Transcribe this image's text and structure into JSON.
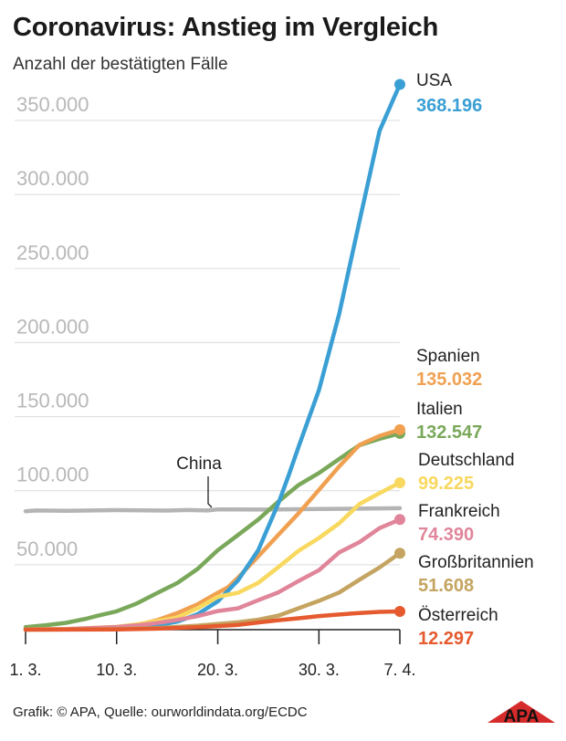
{
  "title": "Coronavirus: Anstieg im Vergleich",
  "subtitle": "Anzahl der bestätigten Fälle",
  "footer": "Grafik: © APA, Quelle: ourworldindata.org/ECDC",
  "logo_text": "APA",
  "chart_data": {
    "type": "line",
    "title": "Coronavirus: Anstieg im Vergleich",
    "subtitle": "Anzahl der bestätigten Fälle",
    "ylim": [
      0,
      370000
    ],
    "y_ticks": [
      50000,
      100000,
      150000,
      200000,
      250000,
      300000,
      350000
    ],
    "y_tick_labels": [
      "50.000",
      "100.000",
      "150.000",
      "200.000",
      "250.000",
      "300.000",
      "350.000"
    ],
    "x_tick_labels": [
      "1. 3.",
      "10. 3.",
      "20. 3.",
      "30. 3.",
      "7. 4."
    ],
    "x_tick_days": [
      1,
      10,
      20,
      30,
      38
    ],
    "xlim": [
      1,
      38
    ],
    "grid": true,
    "series": [
      {
        "name": "China",
        "color": "#b4b4b4",
        "label": "China",
        "end_marker": false,
        "x": [
          1,
          2,
          5,
          10,
          15,
          17,
          19,
          20,
          25,
          30,
          35,
          38
        ],
        "y": [
          80000,
          80500,
          80300,
          80700,
          80400,
          80800,
          80500,
          81200,
          81100,
          81500,
          81800,
          82000
        ]
      },
      {
        "name": "Italien",
        "color": "#7aa85a",
        "label": "Italien",
        "value_label": "132.547",
        "end_marker": true,
        "x": [
          1,
          3,
          5,
          7,
          8,
          10,
          12,
          14,
          16,
          18,
          20,
          22,
          24,
          26,
          28,
          30,
          32,
          34,
          36,
          38
        ],
        "y": [
          1700,
          3000,
          4600,
          7400,
          9200,
          12400,
          17700,
          24700,
          31500,
          41000,
          53600,
          63900,
          74400,
          86500,
          97700,
          105800,
          115200,
          124600,
          128900,
          132547
        ]
      },
      {
        "name": "Spanien",
        "color": "#f0a050",
        "label": "Spanien",
        "value_label": "135.032",
        "end_marker": true,
        "x": [
          1,
          5,
          8,
          10,
          12,
          14,
          16,
          18,
          20,
          21,
          22,
          24,
          26,
          28,
          30,
          32,
          34,
          36,
          38
        ],
        "y": [
          100,
          300,
          700,
          1700,
          3100,
          6400,
          11200,
          17100,
          24900,
          28600,
          35100,
          49500,
          64100,
          78700,
          94400,
          110200,
          124700,
          130800,
          135032
        ]
      },
      {
        "name": "USA",
        "color": "#3a9fd4",
        "label": "USA",
        "value_label": "368.196",
        "end_marker": true,
        "x": [
          1,
          5,
          10,
          12,
          14,
          16,
          18,
          20,
          22,
          24,
          26,
          27,
          28,
          30,
          32,
          34,
          36,
          38
        ],
        "y": [
          80,
          200,
          700,
          1600,
          2900,
          5400,
          10400,
          19100,
          33300,
          53700,
          85400,
          104000,
          123700,
          161800,
          213100,
          275600,
          336900,
          368196
        ]
      },
      {
        "name": "Deutschland",
        "color": "#f8d85e",
        "label": "Deutschland",
        "value_label": "99.225",
        "end_marker": true,
        "x": [
          1,
          5,
          10,
          12,
          14,
          16,
          18,
          20,
          22,
          24,
          26,
          28,
          30,
          32,
          34,
          36,
          38
        ],
        "y": [
          130,
          500,
          1900,
          3600,
          5800,
          8200,
          14500,
          22200,
          24900,
          31600,
          42300,
          53300,
          61900,
          71800,
          84800,
          92200,
          99225
        ]
      },
      {
        "name": "Frankreich",
        "color": "#e0859a",
        "label": "Frankreich",
        "value_label": "74.390",
        "end_marker": true,
        "x": [
          1,
          5,
          10,
          12,
          14,
          16,
          18,
          20,
          22,
          24,
          26,
          28,
          30,
          32,
          34,
          36,
          38
        ],
        "y": [
          130,
          400,
          1800,
          2900,
          4500,
          6600,
          9100,
          12600,
          14400,
          19900,
          25200,
          32900,
          40200,
          52100,
          59100,
          68600,
          74390
        ]
      },
      {
        "name": "Großbritannien",
        "color": "#c4a460",
        "label": "Großbritannien",
        "value_label": "51.608",
        "end_marker": true,
        "x": [
          1,
          5,
          10,
          14,
          18,
          20,
          22,
          24,
          26,
          28,
          30,
          32,
          34,
          36,
          38
        ],
        "y": [
          40,
          100,
          400,
          1100,
          2700,
          3900,
          5000,
          6700,
          9500,
          14500,
          19500,
          25100,
          33700,
          42000,
          51608
        ]
      },
      {
        "name": "Österreich",
        "color": "#e55a2e",
        "label": "Österreich",
        "value_label": "12.297",
        "end_marker": true,
        "x": [
          1,
          10,
          14,
          18,
          20,
          22,
          24,
          26,
          28,
          30,
          32,
          34,
          36,
          38
        ],
        "y": [
          10,
          130,
          660,
          1650,
          2400,
          3200,
          4870,
          6400,
          7700,
          9200,
          10200,
          11300,
          12000,
          12297
        ]
      }
    ]
  }
}
